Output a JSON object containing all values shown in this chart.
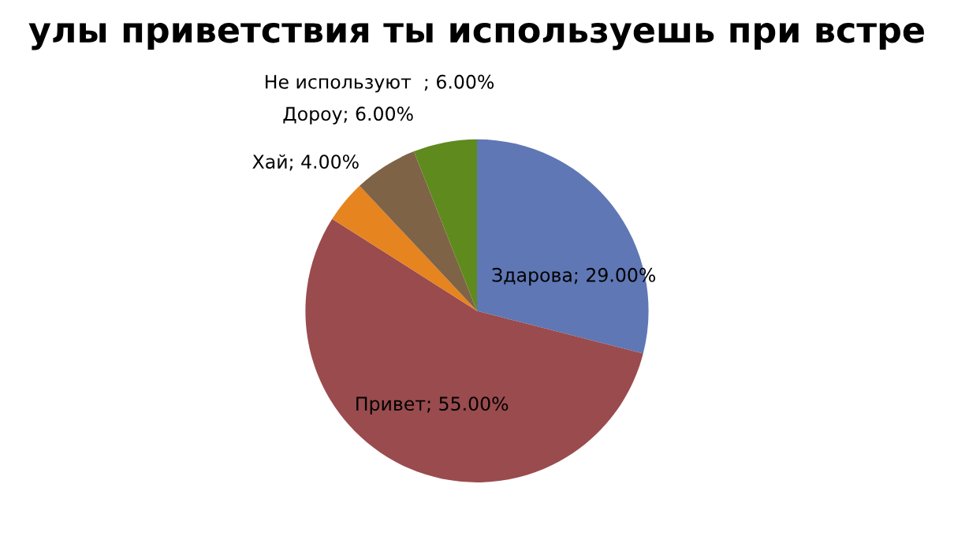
{
  "chart_data": {
    "type": "pie",
    "title": "улы приветствия ты используешь при встре",
    "categories": [
      "Здарова",
      "Привет",
      "Хай",
      "Дороу",
      "Не используют  "
    ],
    "values": [
      29,
      55,
      4,
      6,
      6
    ],
    "colors": [
      "#5f77b4",
      "#9a4b4e",
      "#e6841f",
      "#7f6346",
      "#5f8a1e"
    ],
    "value_labels": [
      "; 29.00%",
      "; 55.00%",
      "; 4.00%",
      "; 6.00%",
      "; 6.00%"
    ]
  }
}
